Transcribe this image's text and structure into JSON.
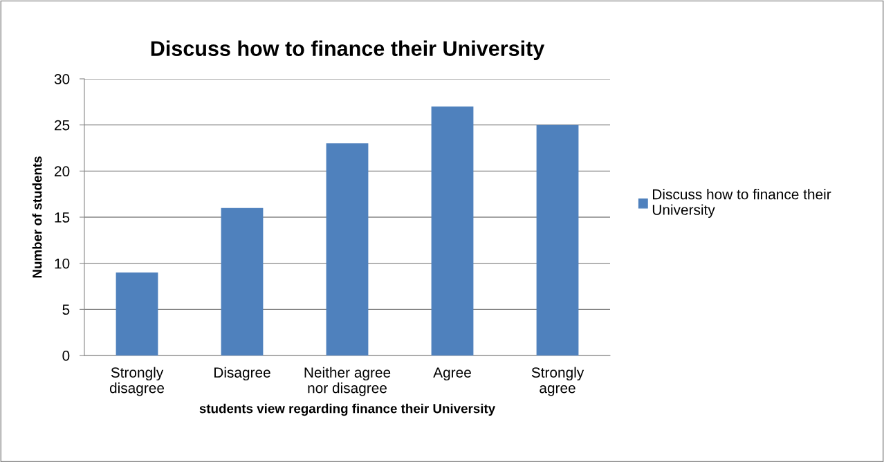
{
  "chart_data": {
    "type": "bar",
    "title": "Discuss how to finance their University",
    "xlabel": "students view regarding finance their University",
    "ylabel": "Number of students",
    "categories": [
      "Strongly\ndisagree",
      "Disagree",
      "Neither agree\nnor disagree",
      "Agree",
      "Strongly\nagree"
    ],
    "series": [
      {
        "name": "Discuss how to finance their\nUniversity",
        "color": "#4f81bd",
        "values": [
          9,
          16,
          23,
          27,
          25
        ]
      }
    ],
    "ylim": [
      0,
      30
    ],
    "yticks": [
      0,
      5,
      10,
      15,
      20,
      25,
      30
    ],
    "grid": "y",
    "legend": "right"
  }
}
